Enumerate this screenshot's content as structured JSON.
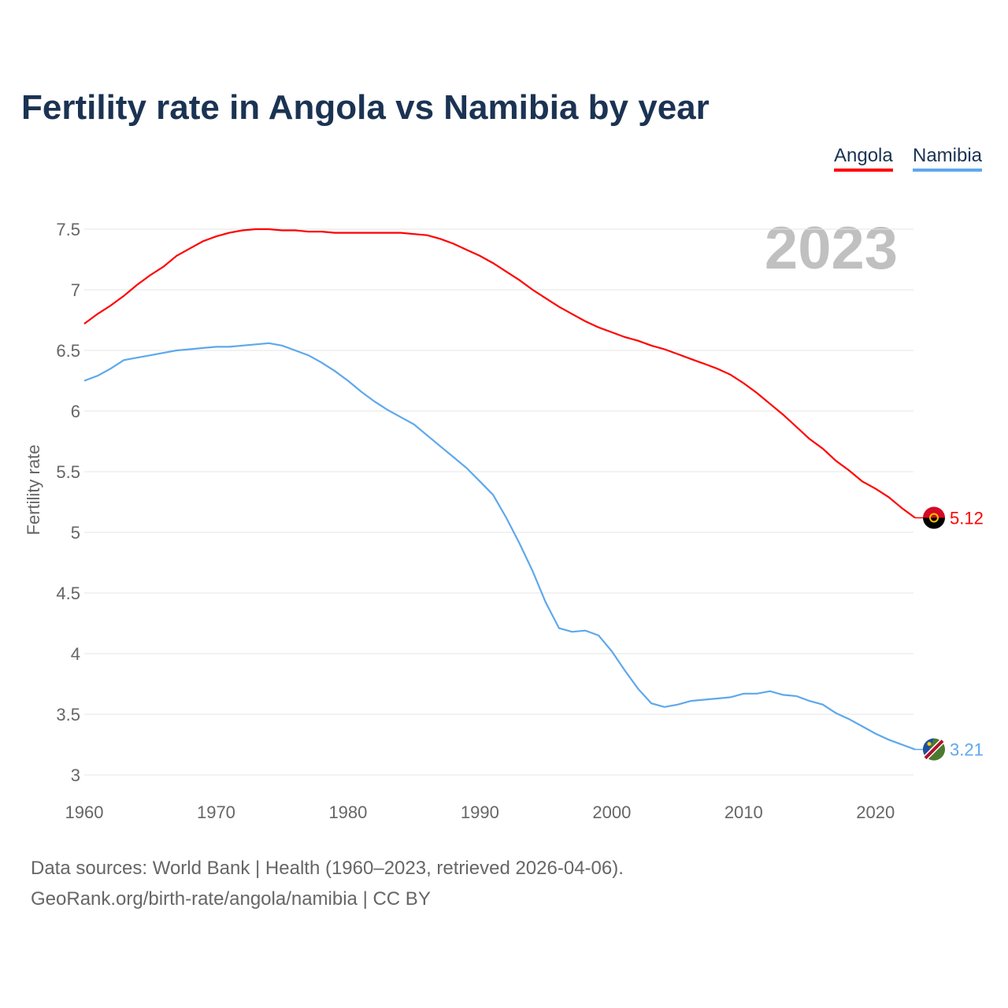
{
  "title": "Fertility rate in Angola vs Namibia by year",
  "footer": {
    "line1": "Data sources: World Bank | Health (1960–2023, retrieved 2026-04-06).",
    "line2": "GeoRank.org/birth-rate/angola/namibia | CC BY"
  },
  "chart_data": {
    "type": "line",
    "title": "Fertility rate in Angola vs Namibia by year",
    "ylabel": "Fertility rate",
    "xlabel": "",
    "year_label": "2023",
    "xlim": [
      1960,
      2023
    ],
    "ylim": [
      3,
      7.5
    ],
    "xticks": [
      "1960",
      "1970",
      "1980",
      "1990",
      "2000",
      "2010",
      "2020"
    ],
    "yticks": [
      "3",
      "3.5",
      "4",
      "4.5",
      "5",
      "5.5",
      "6",
      "6.5",
      "7",
      "7.5"
    ],
    "legend": [
      "Angola",
      "Namibia"
    ],
    "x": [
      1960,
      1961,
      1962,
      1963,
      1964,
      1965,
      1966,
      1967,
      1968,
      1969,
      1970,
      1971,
      1972,
      1973,
      1974,
      1975,
      1976,
      1977,
      1978,
      1979,
      1980,
      1981,
      1982,
      1983,
      1984,
      1985,
      1986,
      1987,
      1988,
      1989,
      1990,
      1991,
      1992,
      1993,
      1994,
      1995,
      1996,
      1997,
      1998,
      1999,
      2000,
      2001,
      2002,
      2003,
      2004,
      2005,
      2006,
      2007,
      2008,
      2009,
      2010,
      2011,
      2012,
      2013,
      2014,
      2015,
      2016,
      2017,
      2018,
      2019,
      2020,
      2021,
      2022,
      2023
    ],
    "series": [
      {
        "name": "Angola",
        "color": "#ff0000",
        "end_label": "5.12",
        "values": [
          6.72,
          6.8,
          6.87,
          6.95,
          7.04,
          7.12,
          7.19,
          7.28,
          7.34,
          7.4,
          7.44,
          7.47,
          7.49,
          7.5,
          7.5,
          7.49,
          7.49,
          7.48,
          7.48,
          7.47,
          7.47,
          7.47,
          7.47,
          7.47,
          7.47,
          7.46,
          7.45,
          7.42,
          7.38,
          7.33,
          7.28,
          7.22,
          7.15,
          7.08,
          7.0,
          6.93,
          6.86,
          6.8,
          6.74,
          6.69,
          6.65,
          6.61,
          6.58,
          6.54,
          6.51,
          6.47,
          6.43,
          6.39,
          6.35,
          6.3,
          6.23,
          6.15,
          6.06,
          5.97,
          5.87,
          5.77,
          5.69,
          5.59,
          5.51,
          5.42,
          5.36,
          5.29,
          5.2,
          5.12
        ]
      },
      {
        "name": "Namibia",
        "color": "#5ea8ec",
        "end_label": "3.21",
        "values": [
          6.25,
          6.29,
          6.35,
          6.42,
          6.44,
          6.46,
          6.48,
          6.5,
          6.51,
          6.52,
          6.53,
          6.53,
          6.54,
          6.55,
          6.56,
          6.54,
          6.5,
          6.46,
          6.4,
          6.33,
          6.25,
          6.16,
          6.08,
          6.01,
          5.95,
          5.89,
          5.8,
          5.71,
          5.62,
          5.53,
          5.42,
          5.31,
          5.12,
          4.91,
          4.68,
          4.42,
          4.21,
          4.18,
          4.19,
          4.15,
          4.02,
          3.86,
          3.71,
          3.59,
          3.56,
          3.58,
          3.61,
          3.62,
          3.63,
          3.64,
          3.67,
          3.67,
          3.69,
          3.66,
          3.65,
          3.61,
          3.58,
          3.51,
          3.46,
          3.4,
          3.34,
          3.29,
          3.25,
          3.21
        ]
      }
    ]
  }
}
